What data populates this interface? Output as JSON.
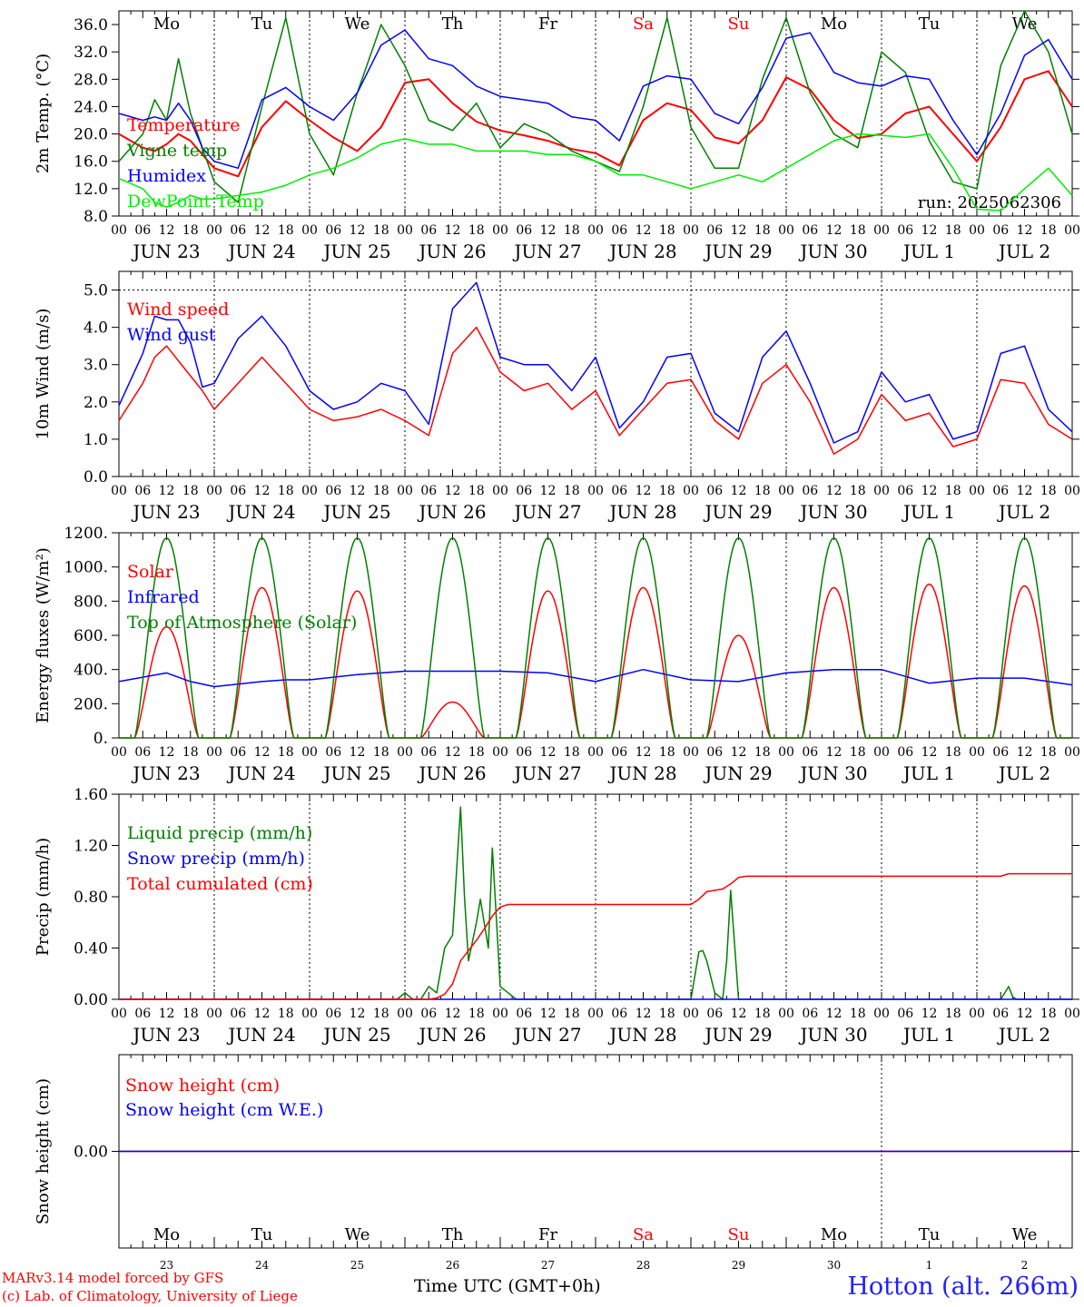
{
  "meteogram": {
    "run_label": "run: 2025062306",
    "station": "Hotton (alt. 266m)",
    "credits": [
      "MARv3.14 model forced by GFS",
      "(c) Lab. of Climatology, University of Liege"
    ],
    "time_axis_label": "Time UTC (GMT+0h)",
    "day_names": [
      "Mo",
      "Tu",
      "We",
      "Th",
      "Fr",
      "Sa",
      "Su",
      "Mo",
      "Tu",
      "We"
    ],
    "weekend_day_indices": [
      5,
      6
    ],
    "date_labels": [
      "JUN 23",
      "JUN 24",
      "JUN 25",
      "JUN 26",
      "JUN 27",
      "JUN 28",
      "JUN 29",
      "JUN 30",
      "JUL  1",
      "JUL  2"
    ],
    "day_numbers": [
      "23",
      "24",
      "25",
      "26",
      "27",
      "28",
      "29",
      "30",
      "1",
      "2"
    ],
    "hour_ticks": [
      "00",
      "06",
      "12",
      "18"
    ],
    "colors": {
      "red": "#ff0000",
      "green": "#008000",
      "blue": "#0000ff",
      "lightgreen": "#00ee00"
    }
  },
  "chart_data": [
    {
      "type": "line",
      "ylabel": "2m Temp. (°C)",
      "ylim": [
        8,
        38
      ],
      "yticks": [
        "8.0",
        "12.0",
        "16.0",
        "20.0",
        "24.0",
        "28.0",
        "32.0",
        "36.0"
      ],
      "x_unit": "hours from JUN 23 00 UTC",
      "series": [
        {
          "name": "Temperature",
          "color": "red",
          "x": [
            0,
            6,
            9,
            12,
            15,
            18,
            21,
            24,
            30,
            36,
            42,
            48,
            54,
            60,
            66,
            72,
            78,
            84,
            90,
            96,
            102,
            108,
            114,
            120,
            126,
            132,
            138,
            144,
            150,
            156,
            162,
            168,
            174,
            180,
            186,
            192,
            198,
            204,
            210,
            216,
            222,
            228,
            234,
            240
          ],
          "y": [
            20,
            18,
            17.5,
            18.5,
            20,
            19,
            17,
            15,
            13.8,
            21,
            24.8,
            22,
            19.5,
            17.5,
            21,
            27.5,
            28,
            24.5,
            21.8,
            20.5,
            19.8,
            19,
            17.8,
            17.2,
            15.4,
            22,
            24.5,
            23.5,
            19.5,
            18.6,
            22,
            28.3,
            26.5,
            22,
            19.4,
            20,
            23,
            24,
            20,
            16,
            21,
            28,
            29.2,
            24
          ]
        },
        {
          "name": "Vigne temp",
          "color": "green",
          "x": [
            0,
            6,
            9,
            12,
            15,
            18,
            21,
            24,
            30,
            36,
            42,
            48,
            54,
            60,
            66,
            72,
            78,
            84,
            90,
            96,
            102,
            108,
            114,
            120,
            126,
            132,
            138,
            144,
            150,
            156,
            162,
            168,
            174,
            180,
            186,
            192,
            198,
            204,
            210,
            216,
            222,
            228,
            234,
            240
          ],
          "y": [
            16,
            20,
            25,
            22,
            31,
            23,
            18,
            13,
            10,
            24,
            37,
            20,
            14,
            26,
            36,
            30,
            22,
            20.5,
            24.5,
            18,
            21.5,
            20,
            17.5,
            16,
            14.5,
            24,
            37,
            21,
            15,
            15,
            28,
            37,
            26,
            20,
            18,
            32,
            29,
            19,
            13,
            12,
            30,
            38,
            32,
            20
          ]
        },
        {
          "name": "Humidex",
          "color": "blue",
          "x": [
            0,
            6,
            9,
            12,
            15,
            18,
            21,
            24,
            30,
            36,
            42,
            48,
            54,
            60,
            66,
            72,
            78,
            84,
            90,
            96,
            102,
            108,
            114,
            120,
            126,
            132,
            138,
            144,
            150,
            156,
            162,
            168,
            174,
            180,
            186,
            192,
            198,
            204,
            210,
            216,
            222,
            228,
            234,
            240
          ],
          "y": [
            23,
            22,
            22.5,
            22,
            24.5,
            22,
            18,
            16,
            15,
            25,
            26.8,
            24,
            22,
            26,
            33,
            35.2,
            31,
            30,
            27,
            25.5,
            25,
            24.5,
            22.5,
            22,
            19,
            27,
            28.5,
            28,
            23,
            21.5,
            26.8,
            34,
            34.8,
            29,
            27.5,
            27,
            28.5,
            28,
            22,
            17,
            23,
            31.5,
            33.8,
            28
          ]
        },
        {
          "name": "DewPoint Temp",
          "color": "lightgreen",
          "x": [
            0,
            6,
            9,
            12,
            15,
            18,
            21,
            24,
            30,
            36,
            42,
            48,
            54,
            60,
            66,
            72,
            78,
            84,
            90,
            96,
            102,
            108,
            114,
            120,
            126,
            132,
            138,
            144,
            150,
            156,
            162,
            168,
            174,
            180,
            186,
            192,
            198,
            204,
            210,
            216,
            222,
            228,
            234,
            240
          ],
          "y": [
            13.5,
            12,
            10,
            9.3,
            10,
            11,
            10.5,
            10.5,
            11,
            11.5,
            12.5,
            14,
            15,
            16.5,
            18.5,
            19.3,
            18.5,
            18.5,
            17.5,
            17.5,
            17.5,
            17,
            17,
            16,
            14,
            14,
            13,
            12,
            13,
            14,
            13,
            15,
            17,
            19,
            20,
            19.8,
            19.5,
            20,
            15,
            9,
            8.8,
            12,
            15,
            11
          ]
        }
      ]
    },
    {
      "type": "line",
      "ylabel": "10m Wind (m/s)",
      "ylim": [
        0,
        5.5
      ],
      "yticks": [
        "0.0",
        "1.0",
        "2.0",
        "3.0",
        "4.0",
        "5.0"
      ],
      "x_unit": "hours from JUN 23 00 UTC",
      "series": [
        {
          "name": "Wind speed",
          "color": "red",
          "x": [
            0,
            6,
            9,
            12,
            15,
            18,
            21,
            24,
            30,
            36,
            42,
            48,
            54,
            60,
            66,
            72,
            78,
            84,
            90,
            96,
            102,
            108,
            114,
            120,
            126,
            132,
            138,
            144,
            150,
            156,
            162,
            168,
            174,
            180,
            186,
            192,
            198,
            204,
            210,
            216,
            222,
            228,
            234,
            240
          ],
          "y": [
            1.5,
            2.5,
            3.2,
            3.5,
            3.1,
            2.7,
            2.3,
            1.8,
            2.5,
            3.2,
            2.5,
            1.8,
            1.5,
            1.6,
            1.8,
            1.5,
            1.1,
            3.3,
            4,
            2.8,
            2.3,
            2.5,
            1.8,
            2.3,
            1.1,
            1.8,
            2.5,
            2.6,
            1.5,
            1,
            2.5,
            3,
            2,
            0.6,
            1,
            2.2,
            1.5,
            1.7,
            0.8,
            1,
            2.6,
            2.5,
            1.4,
            1
          ]
        },
        {
          "name": "Wind gust",
          "color": "blue",
          "x": [
            0,
            6,
            9,
            12,
            15,
            18,
            21,
            24,
            30,
            36,
            42,
            48,
            54,
            60,
            66,
            72,
            78,
            84,
            90,
            96,
            102,
            108,
            114,
            120,
            126,
            132,
            138,
            144,
            150,
            156,
            162,
            168,
            174,
            180,
            186,
            192,
            198,
            204,
            210,
            216,
            222,
            228,
            234,
            240
          ],
          "y": [
            1.9,
            3.3,
            4.3,
            4.2,
            4.2,
            3.6,
            2.4,
            2.5,
            3.7,
            4.3,
            3.5,
            2.3,
            1.8,
            2,
            2.5,
            2.3,
            1.4,
            4.5,
            5.2,
            3.2,
            3,
            3,
            2.3,
            3.2,
            1.3,
            2,
            3.2,
            3.3,
            1.7,
            1.2,
            3.2,
            3.9,
            2.5,
            0.9,
            1.2,
            2.8,
            2,
            2.2,
            1,
            1.2,
            3.3,
            3.5,
            1.8,
            1.2
          ]
        }
      ]
    },
    {
      "type": "line",
      "ylabel": "Energy fluxes (W/m²)",
      "ylim": [
        0,
        1200
      ],
      "yticks": [
        "0.",
        "200.",
        "400.",
        "600.",
        "800.",
        "1000.",
        "1200."
      ],
      "x_unit": "hours from JUN 23 00 UTC",
      "solar_peaks": [
        650,
        880,
        860,
        210,
        860,
        880,
        600,
        880,
        900,
        890
      ],
      "toa_peak": 1170,
      "series": [
        {
          "name": "Solar",
          "color": "red",
          "x": [],
          "y": []
        },
        {
          "name": "Infrared",
          "color": "blue",
          "x": [
            0,
            12,
            18,
            24,
            36,
            42,
            48,
            60,
            72,
            84,
            96,
            108,
            120,
            132,
            144,
            156,
            168,
            180,
            192,
            204,
            216,
            228,
            240
          ],
          "y": [
            330,
            380,
            330,
            300,
            330,
            340,
            340,
            370,
            390,
            390,
            390,
            380,
            330,
            400,
            340,
            330,
            380,
            400,
            400,
            320,
            350,
            350,
            310
          ]
        },
        {
          "name": "Top of Atmosphere (Solar)",
          "color": "green",
          "x": [],
          "y": []
        }
      ]
    },
    {
      "type": "line",
      "ylabel": "Precip (mm/h)",
      "ylim": [
        0,
        1.6
      ],
      "yticks": [
        "0.00",
        "0.40",
        "0.80",
        "1.20",
        "1.60"
      ],
      "x_unit": "hours from JUN 23 00 UTC",
      "series": [
        {
          "name": "Liquid precip (mm/h)",
          "color": "green",
          "x": [
            0,
            70,
            72,
            74,
            76,
            78,
            80,
            82,
            84,
            86,
            87,
            88,
            90,
            91,
            93,
            94,
            96,
            98,
            100,
            144,
            146,
            147,
            148,
            150,
            152,
            153,
            154,
            156,
            158,
            222,
            224,
            225,
            226,
            240
          ],
          "y": [
            0,
            0,
            0.05,
            0,
            0,
            0.1,
            0.05,
            0.4,
            0.5,
            1.5,
            0.8,
            0.3,
            0.6,
            0.78,
            0.4,
            1.18,
            0.1,
            0.05,
            0,
            0,
            0.37,
            0.38,
            0.3,
            0.05,
            0,
            0.3,
            0.85,
            0,
            0,
            0,
            0.1,
            0.02,
            0,
            0
          ]
        },
        {
          "name": "Snow precip (mm/h)",
          "color": "blue",
          "x": [
            0,
            240
          ],
          "y": [
            0,
            0
          ]
        },
        {
          "name": "Total cumulated (cm)",
          "color": "red",
          "x": [
            0,
            78,
            80,
            82,
            84,
            86,
            88,
            90,
            92,
            94,
            96,
            98,
            144,
            146,
            148,
            152,
            154,
            156,
            158,
            222,
            224,
            240
          ],
          "y": [
            0,
            0,
            0.01,
            0.04,
            0.12,
            0.3,
            0.38,
            0.46,
            0.55,
            0.65,
            0.72,
            0.74,
            0.74,
            0.78,
            0.84,
            0.86,
            0.9,
            0.95,
            0.96,
            0.96,
            0.98,
            0.98
          ]
        }
      ]
    },
    {
      "type": "line",
      "ylabel": "Snow height (cm)",
      "ylim": [
        -1,
        1
      ],
      "yticks": [
        "0.00"
      ],
      "x_unit": "hours from JUN 23 00 UTC",
      "series": [
        {
          "name": "Snow height (cm)",
          "color": "red",
          "x": [
            0,
            240
          ],
          "y": [
            0,
            0
          ]
        },
        {
          "name": "Snow height (cm W.E.)",
          "color": "blue",
          "x": [
            0,
            240
          ],
          "y": [
            0,
            0
          ]
        }
      ]
    }
  ]
}
